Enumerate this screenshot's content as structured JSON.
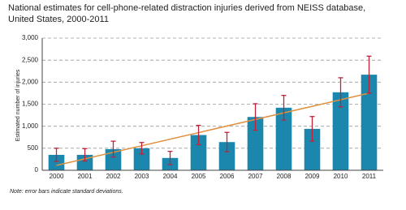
{
  "chart_data": {
    "type": "bar",
    "title": "National estimates for cell-phone-related distraction injuries derived from NEISS database,",
    "subtitle": "United States, 2000-2011",
    "y_label": "Estimated number of injuries",
    "note": "Note: error bars indicate standard deviations.",
    "categories": [
      "2000",
      "2001",
      "2002",
      "2003",
      "2004",
      "2005",
      "2006",
      "2007",
      "2008",
      "2009",
      "2010",
      "2011"
    ],
    "values": [
      350,
      350,
      480,
      500,
      280,
      800,
      640,
      1210,
      1420,
      940,
      1770,
      2170
    ],
    "errors": [
      150,
      140,
      180,
      130,
      150,
      220,
      220,
      300,
      280,
      280,
      330,
      420
    ],
    "color": "#1b87ad",
    "error_color": "#c0223a",
    "trendline": {
      "color": "#e0913f",
      "values": [
        110,
        1750
      ]
    },
    "ylim": [
      0,
      3000
    ],
    "yticks": [
      0,
      500,
      {
        "value": 1000,
        "label": "1,000"
      },
      {
        "value": 1500,
        "label": "1,500"
      },
      {
        "value": 2000,
        "label": "2,000"
      },
      {
        "value": 2500,
        "label": "2,500"
      },
      {
        "value": 3000,
        "label": "3,000"
      }
    ],
    "grid": true
  }
}
